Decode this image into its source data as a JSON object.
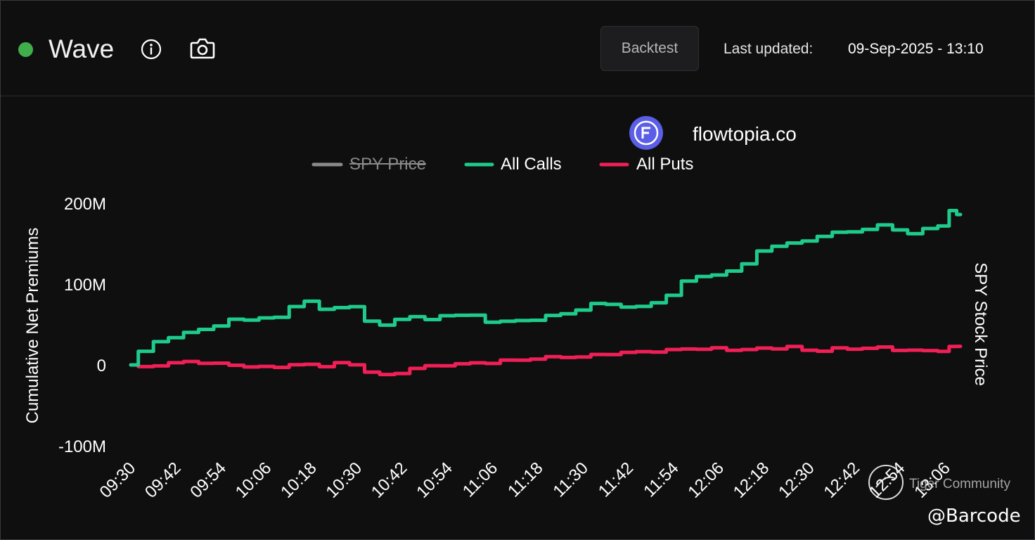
{
  "header": {
    "title": "Wave",
    "status_color": "#3fae4b",
    "info_icon": "info-icon",
    "camera_icon": "camera-icon",
    "backtest_label": "Backtest",
    "last_updated_label": "Last updated:",
    "last_updated_value": "09-Sep-2025 - 13:10"
  },
  "brand": {
    "logo_icon": "flowtopia-logo",
    "name": "flowtopia.co"
  },
  "watermarks": {
    "community": "Tiger Community",
    "handle": "@Barcode"
  },
  "chart_data": {
    "type": "line",
    "ylabel": "Cumulative Net Premiums",
    "y2label": "SPY Stock Price",
    "ylim": [
      -100,
      200
    ],
    "yunit": "M",
    "yticks": [
      "200M",
      "100M",
      "0",
      "-100M"
    ],
    "ytick_values": [
      200,
      100,
      0,
      -100
    ],
    "xticks": [
      "09:30",
      "09:42",
      "09:54",
      "10:06",
      "10:18",
      "10:30",
      "10:42",
      "10:54",
      "11:06",
      "11:18",
      "11:30",
      "11:42",
      "11:54",
      "12:06",
      "12:18",
      "12:30",
      "12:42",
      "12:54",
      "13:06"
    ],
    "legend": [
      {
        "name": "SPY Price",
        "color": "#8a8a8a",
        "hidden": true
      },
      {
        "name": "All Calls",
        "color": "#1fcb8b",
        "hidden": false
      },
      {
        "name": "All Puts",
        "color": "#f01f56",
        "hidden": false
      }
    ],
    "grid": false,
    "legend_position": "top-center",
    "x": [
      "09:30",
      "09:34",
      "09:38",
      "09:42",
      "09:46",
      "09:50",
      "09:54",
      "09:58",
      "10:02",
      "10:06",
      "10:10",
      "10:14",
      "10:18",
      "10:22",
      "10:26",
      "10:30",
      "10:34",
      "10:38",
      "10:42",
      "10:46",
      "10:50",
      "10:54",
      "10:58",
      "11:02",
      "11:06",
      "11:10",
      "11:14",
      "11:18",
      "11:22",
      "11:26",
      "11:30",
      "11:34",
      "11:38",
      "11:42",
      "11:46",
      "11:50",
      "11:54",
      "11:58",
      "12:02",
      "12:06",
      "12:10",
      "12:14",
      "12:18",
      "12:22",
      "12:26",
      "12:30",
      "12:34",
      "12:38",
      "12:42",
      "12:46",
      "12:50",
      "12:54",
      "12:58",
      "13:02",
      "13:06",
      "13:08",
      "13:10"
    ],
    "series": [
      {
        "name": "All Calls",
        "color": "#1fcb8b",
        "values": [
          0,
          16,
          30,
          33,
          40,
          45,
          47,
          57,
          56,
          57,
          60,
          72,
          78,
          70,
          70,
          72,
          55,
          48,
          57,
          60,
          55,
          62,
          61,
          61,
          54,
          53,
          55,
          56,
          60,
          64,
          68,
          75,
          76,
          71,
          72,
          78,
          85,
          104,
          110,
          110,
          117,
          125,
          140,
          148,
          150,
          153,
          160,
          163,
          165,
          168,
          172,
          168,
          162,
          168,
          173,
          190,
          186
        ]
      },
      {
        "name": "All Puts",
        "color": "#f01f56",
        "values": [
          0,
          -3,
          0,
          2,
          4,
          3,
          1,
          0,
          -2,
          -3,
          -2,
          0,
          0,
          -1,
          2,
          0,
          -8,
          -13,
          -10,
          -4,
          -2,
          0,
          1,
          2,
          3,
          5,
          6,
          8,
          9,
          10,
          10,
          12,
          14,
          15,
          16,
          17,
          18,
          20,
          20,
          20,
          19,
          19,
          20,
          21,
          22,
          18,
          18,
          20,
          20,
          21,
          21,
          19,
          18,
          17,
          18,
          22,
          23
        ]
      }
    ]
  }
}
